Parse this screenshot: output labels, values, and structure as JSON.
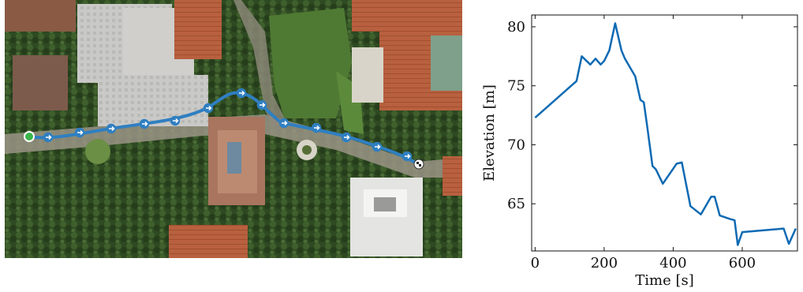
{
  "map": {
    "route_color": "#2f7fc1",
    "start_color": "#3bb44a",
    "end_marker": "checkered-flag-icon"
  },
  "chart_data": {
    "type": "line",
    "xlabel": "Time [s]",
    "ylabel": "Elevation [m]",
    "xlim": [
      -10,
      760
    ],
    "ylim": [
      61,
      81
    ],
    "xticks": [
      0,
      200,
      400,
      600
    ],
    "yticks": [
      65,
      70,
      75,
      80
    ],
    "grid": false,
    "line_color": "#0e6ab3",
    "x": [
      0,
      120,
      135,
      160,
      175,
      190,
      200,
      215,
      232,
      250,
      260,
      290,
      305,
      315,
      325,
      340,
      350,
      370,
      410,
      425,
      450,
      480,
      510,
      520,
      535,
      565,
      578,
      587,
      600,
      720,
      735,
      755
    ],
    "y": [
      72.3,
      75.4,
      77.5,
      76.8,
      77.3,
      76.8,
      77.1,
      78.0,
      80.3,
      78.0,
      77.3,
      75.8,
      73.8,
      73.6,
      71.5,
      68.2,
      67.9,
      66.7,
      68.4,
      68.5,
      64.8,
      64.1,
      65.6,
      65.6,
      64.0,
      63.7,
      63.6,
      61.5,
      62.6,
      62.9,
      61.6,
      62.9
    ]
  }
}
